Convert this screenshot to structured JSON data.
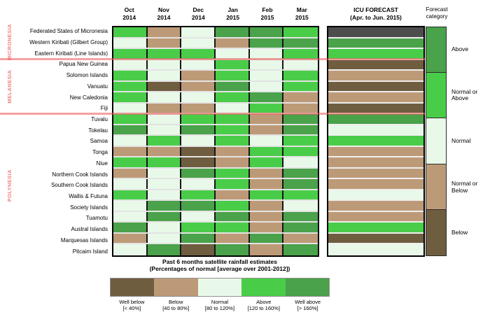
{
  "chart_data": {
    "type": "heatmap",
    "title": "Past 6 months satellite rainfall estimates",
    "subtitle": "(Percentages of normal [average over 2001-2012])",
    "months": [
      {
        "label": "Oct",
        "year": "2014"
      },
      {
        "label": "Nov",
        "year": "2014"
      },
      {
        "label": "Dec",
        "year": "2014"
      },
      {
        "label": "Jan",
        "year": "2015"
      },
      {
        "label": "Feb",
        "year": "2015"
      },
      {
        "label": "Mar",
        "year": "2015"
      }
    ],
    "icu_header": [
      "ICU FORECAST",
      "(Apr. to Jun. 2015)"
    ],
    "forecast_header": [
      "Forecast",
      "category"
    ],
    "palette": {
      "Well below": "#6f5d40",
      "Below": "#bd9a77",
      "Normal": "#e9f9e9",
      "Above": "#49cd49",
      "Well above": "#4aa24a",
      "No forecast": "#4d4d4d"
    },
    "icu_color_map": {
      "Above": "Well above",
      "Normal or Above": "Above",
      "Normal": "Normal",
      "Normal or Below": "Below",
      "Below": "Well below",
      "No forecast": "No forecast"
    },
    "regions": [
      {
        "name": "MICRONESIA",
        "rows": [
          {
            "label": "Federated States of Micronesia",
            "months": [
              "Above",
              "Below",
              "Normal",
              "Well above",
              "Well above",
              "Above"
            ],
            "icu": "No forecast"
          },
          {
            "label": "Western Kiribati (Gilbert Group)",
            "months": [
              "Normal",
              "Below",
              "Normal",
              "Below",
              "Well above",
              "Well above"
            ],
            "icu": "Above"
          },
          {
            "label": "Eastern Kiribati (Line Islands)",
            "months": [
              "Above",
              "Above",
              "Above",
              "Normal",
              "Normal",
              "Above"
            ],
            "icu": "Normal or Above"
          }
        ]
      },
      {
        "name": "MELANESIA",
        "rows": [
          {
            "label": "Papua New Guinea",
            "months": [
              "Normal",
              "Normal",
              "Normal",
              "Above",
              "Normal",
              "Normal"
            ],
            "icu": "Below"
          },
          {
            "label": "Solomon Islands",
            "months": [
              "Above",
              "Normal",
              "Below",
              "Above",
              "Normal",
              "Above"
            ],
            "icu": "Normal or Below"
          },
          {
            "label": "Vanuatu",
            "months": [
              "Above",
              "Well below",
              "Below",
              "Well above",
              "Normal",
              "Above"
            ],
            "icu": "Below"
          },
          {
            "label": "New Caledonia",
            "months": [
              "Above",
              "Normal",
              "Normal",
              "Above",
              "Well above",
              "Below"
            ],
            "icu": "Normal or Below"
          },
          {
            "label": "Fiji",
            "months": [
              "Normal",
              "Below",
              "Below",
              "Normal",
              "Above",
              "Below"
            ],
            "icu": "Below"
          }
        ]
      },
      {
        "name": "POLYNESIA",
        "rows": [
          {
            "label": "Tuvalu",
            "months": [
              "Above",
              "Normal",
              "Above",
              "Above",
              "Below",
              "Well above"
            ],
            "icu": "Above"
          },
          {
            "label": "Tokelau",
            "months": [
              "Well above",
              "Normal",
              "Well above",
              "Above",
              "Below",
              "Well above"
            ],
            "icu": "Normal"
          },
          {
            "label": "Samoa",
            "months": [
              "Normal",
              "Above",
              "Normal",
              "Above",
              "Normal",
              "Above"
            ],
            "icu": "Normal or Above"
          },
          {
            "label": "Tonga",
            "months": [
              "Below",
              "Below",
              "Well below",
              "Below",
              "Above",
              "Above"
            ],
            "icu": "Normal or Below"
          },
          {
            "label": "Niue",
            "months": [
              "Above",
              "Above",
              "Well below",
              "Below",
              "Above",
              "Normal"
            ],
            "icu": "Normal or Below"
          },
          {
            "label": "Northern Cook Islands",
            "months": [
              "Below",
              "Normal",
              "Well above",
              "Above",
              "Below",
              "Well above"
            ],
            "icu": "Normal or Below"
          },
          {
            "label": "Southern Cook Islands",
            "months": [
              "Normal",
              "Normal",
              "Normal",
              "Above",
              "Below",
              "Well above"
            ],
            "icu": "Normal or Below"
          },
          {
            "label": "Wallis & Futuna",
            "months": [
              "Above",
              "Normal",
              "Above",
              "Below",
              "Above",
              "Above"
            ],
            "icu": "Normal"
          },
          {
            "label": "Society Islands",
            "months": [
              "Normal",
              "Well above",
              "Well above",
              "Above",
              "Below",
              "Normal"
            ],
            "icu": "Normal or Below"
          },
          {
            "label": "Tuamotu",
            "months": [
              "Normal",
              "Well above",
              "Normal",
              "Well above",
              "Below",
              "Well above"
            ],
            "icu": "Normal or Below"
          },
          {
            "label": "Austral Islands",
            "months": [
              "Well above",
              "Normal",
              "Above",
              "Above",
              "Below",
              "Well above"
            ],
            "icu": "Normal or Above"
          },
          {
            "label": "Marquesas Islands",
            "months": [
              "Below",
              "Normal",
              "Well above",
              "Below",
              "Well above",
              "Below"
            ],
            "icu": "Below"
          },
          {
            "label": "Pitcairn Island",
            "months": [
              "Normal",
              "Well above",
              "Well below",
              "Well above",
              "Below",
              "Well above"
            ],
            "icu": "Normal"
          }
        ]
      }
    ],
    "forecast_categories": [
      {
        "label": "Above",
        "swatch": "Well above"
      },
      {
        "label": "Normal or Above",
        "swatch": "Above"
      },
      {
        "label": "Normal",
        "swatch": "Normal"
      },
      {
        "label": "Normal or Below",
        "swatch": "Below"
      },
      {
        "label": "Below",
        "swatch": "Well below"
      }
    ],
    "legend": [
      {
        "label": "Well below",
        "range": "[< 40%]"
      },
      {
        "label": "Below",
        "range": "[40 to 80%]"
      },
      {
        "label": "Normal",
        "range": "[80 to 120%]"
      },
      {
        "label": "Above",
        "range": "[120 to 160%]"
      },
      {
        "label": "Well above",
        "range": "[> 160%]"
      }
    ],
    "region_label_color": "#ef8383",
    "separator_color": "rgba(235,85,85,0.55)"
  }
}
